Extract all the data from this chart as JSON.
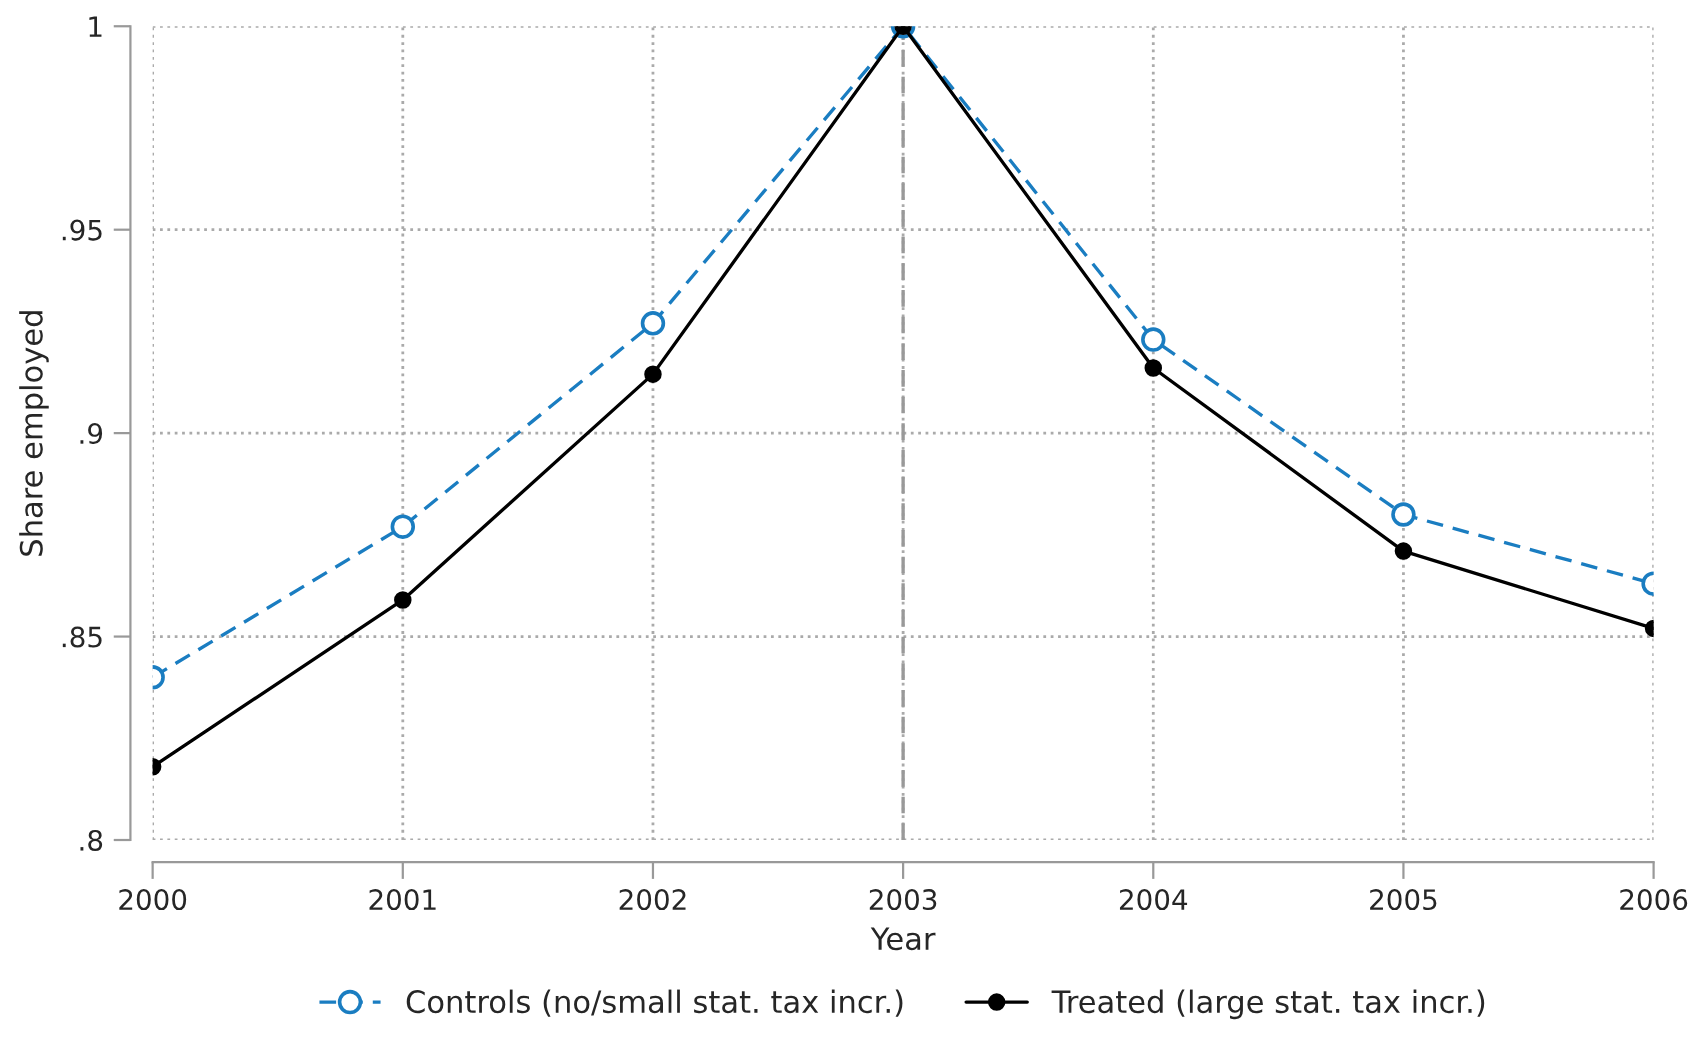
{
  "chart_data": {
    "type": "line",
    "xlabel": "Year",
    "ylabel": "Share employed",
    "x": [
      2000,
      2001,
      2002,
      2003,
      2004,
      2005,
      2006
    ],
    "series": [
      {
        "name": "Controls (no/small stat. tax incr.)",
        "color": "#1a7dc1",
        "values": [
          0.84,
          0.877,
          0.927,
          1.0,
          0.923,
          0.88,
          0.863
        ],
        "line_style": "dashed"
      },
      {
        "name": "Treated (large stat. tax incr.)",
        "color": "#000000",
        "values": [
          0.818,
          0.859,
          0.9145,
          1.0,
          0.916,
          0.871,
          0.852
        ],
        "line_style": "solid"
      }
    ],
    "xlim": [
      2000,
      2006
    ],
    "xticks": [
      2000,
      2001,
      2002,
      2003,
      2004,
      2005,
      2006
    ],
    "ylim": [
      0.8,
      1.0
    ],
    "yticks": [
      {
        "value": 0.8,
        "label": ".8"
      },
      {
        "value": 0.85,
        "label": ".85"
      },
      {
        "value": 0.9,
        "label": ".9"
      },
      {
        "value": 0.95,
        "label": ".95"
      },
      {
        "value": 1.0,
        "label": "1"
      }
    ],
    "ref_lines": [
      {
        "axis": "x",
        "value": 2003,
        "color": "#999999",
        "line_style": "dashed"
      }
    ],
    "grid": true,
    "legend": "bottom",
    "marker": "circle"
  }
}
